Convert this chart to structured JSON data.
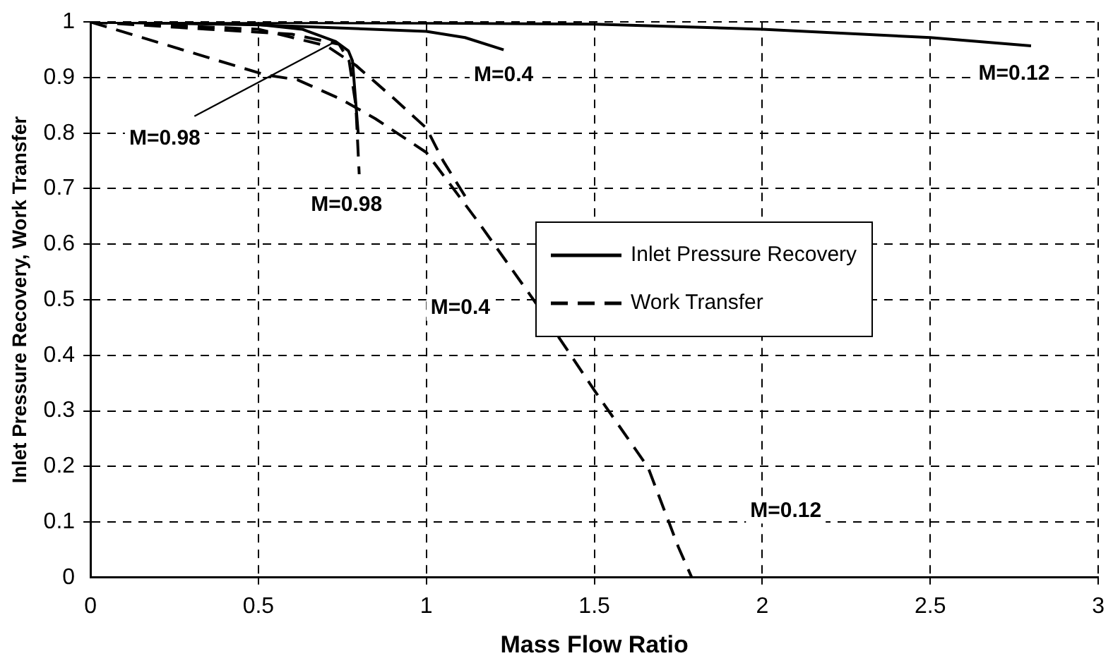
{
  "chart_data": {
    "type": "line",
    "xlabel": "Mass Flow Ratio",
    "ylabel": "Inlet Pressure Recovery, Work Transfer",
    "xlim": [
      0,
      3
    ],
    "xticks": [
      0,
      0.5,
      1,
      1.5,
      2,
      2.5,
      3
    ],
    "ylim": [
      0,
      1
    ],
    "yticks": [
      0,
      0.1,
      0.2,
      0.3,
      0.4,
      0.5,
      0.6,
      0.7,
      0.8,
      0.9,
      1
    ],
    "grid": true,
    "legend": "right",
    "marker": "none",
    "series": [
      {
        "name": "Inlet Pressure Recovery",
        "color": "#000000",
        "line_style": "solid",
        "x": [
          0,
          0.5,
          1,
          1.5,
          2,
          2.5,
          2.8
        ],
        "values": [
          1,
          0.999,
          0.998,
          0.996,
          0.987,
          0.972,
          0.957
        ]
      },
      {
        "color": "#000000",
        "line_style": "solid",
        "x": [
          0,
          0.5,
          1,
          1.115,
          1.23
        ],
        "values": [
          1,
          0.995,
          0.983,
          0.972,
          0.95
        ]
      },
      {
        "color": "#000000",
        "line_style": "solid",
        "x": [
          0,
          0.49,
          0.63,
          0.73,
          0.768,
          0.78,
          0.797
        ],
        "values": [
          1,
          0.996,
          0.987,
          0.965,
          0.948,
          0.93,
          0.8
        ]
      },
      {
        "name": "Work Transfer",
        "color": "#000000",
        "line_style": "dashed",
        "x": [
          0,
          0.52,
          0.616,
          0.746,
          0.848,
          1.0,
          1.152,
          1.326,
          1.5,
          1.66,
          1.75,
          1.79
        ],
        "values": [
          1,
          0.905,
          0.896,
          0.861,
          0.826,
          0.765,
          0.642,
          0.494,
          0.337,
          0.198,
          0.055,
          0
        ]
      },
      {
        "color": "#000000",
        "line_style": "dashed",
        "x": [
          0,
          0.5,
          0.703,
          0.79,
          0.906,
          1.0,
          1.05,
          1.13
        ],
        "values": [
          1,
          0.987,
          0.957,
          0.922,
          0.861,
          0.809,
          0.75,
          0.672
        ]
      },
      {
        "color": "#000000",
        "line_style": "dashed",
        "x": [
          0,
          0.35,
          0.6,
          0.74,
          0.77,
          0.79,
          0.8
        ],
        "values": [
          1,
          0.987,
          0.978,
          0.96,
          0.93,
          0.85,
          0.726
        ]
      }
    ],
    "annotations": [
      {
        "text": "M=0.12",
        "x": 2.8,
        "y": 0.957
      },
      {
        "text": "M=0.4",
        "x": 1.23,
        "y": 0.95
      },
      {
        "text": "M=0.98",
        "x": 0.73,
        "y": 0.965
      },
      {
        "text": "M=0.98",
        "x": 0.8,
        "y": 0.726
      },
      "M=0.4",
      "M=0.12"
    ]
  }
}
